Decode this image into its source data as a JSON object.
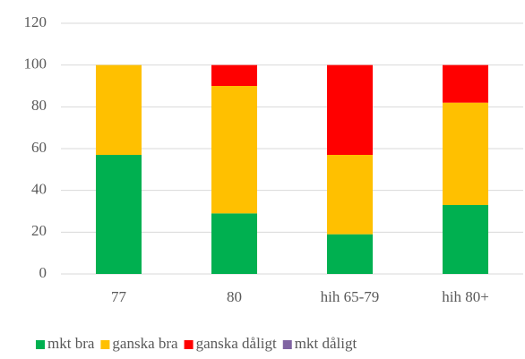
{
  "chart_data": {
    "type": "stacked_bar",
    "categories": [
      "77",
      "80",
      "hih 65-79",
      "hih 80+"
    ],
    "series": [
      {
        "name": "mkt bra",
        "color": "#00b050",
        "values": [
          57,
          29,
          19,
          33
        ]
      },
      {
        "name": "ganska bra",
        "color": "#ffc000",
        "values": [
          43,
          61,
          38,
          49
        ]
      },
      {
        "name": "ganska dåligt",
        "color": "#ff0000",
        "values": [
          0,
          10,
          43,
          18
        ]
      },
      {
        "name": "mkt dåligt",
        "color": "#8064a2",
        "values": [
          0,
          0,
          0,
          0
        ]
      }
    ],
    "ylim": [
      0,
      120
    ],
    "yticks": [
      0,
      20,
      40,
      60,
      80,
      100,
      120
    ],
    "grid": true,
    "legend": "bottom"
  }
}
